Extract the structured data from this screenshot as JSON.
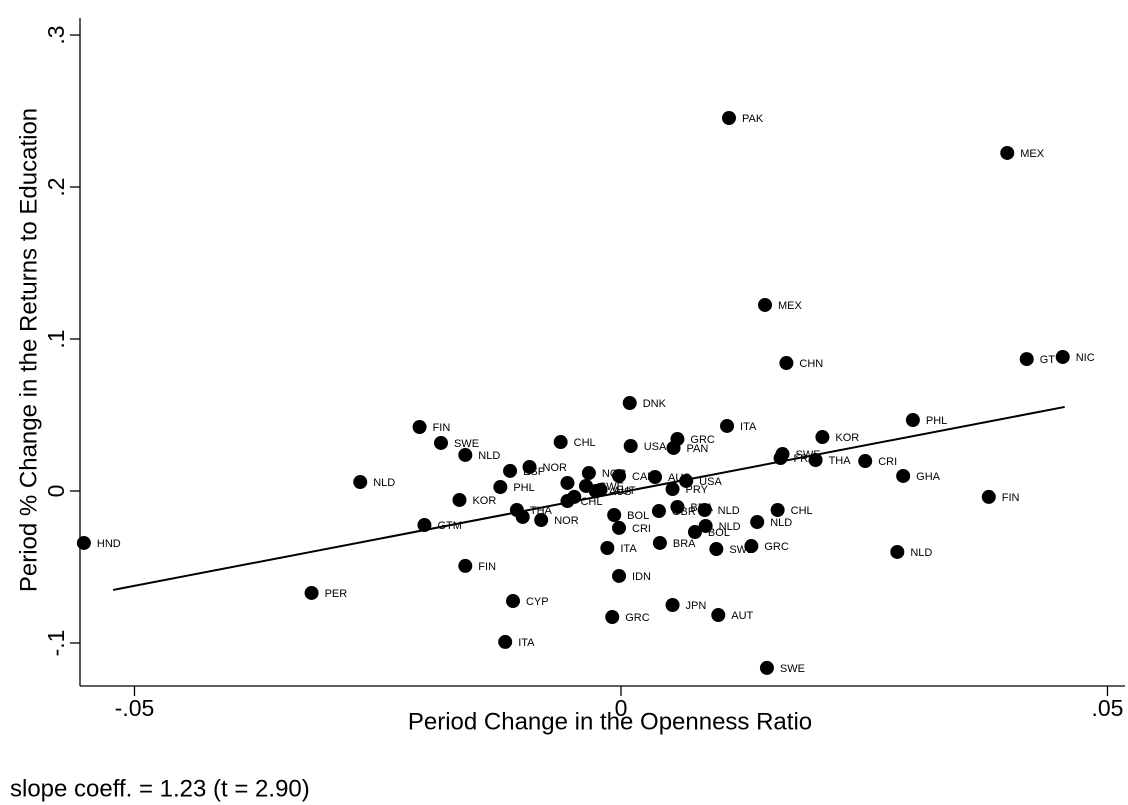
{
  "chart_data": {
    "type": "scatter",
    "xlabel": "Period Change in the Openness Ratio",
    "ylabel": "Period % Change in the Returns to Education",
    "annotation": "slope coeff. = 1.23 (t = 2.90)",
    "xlim": [
      -0.0556,
      0.0518
    ],
    "ylim": [
      -0.1283,
      0.3112
    ],
    "xticks": [
      {
        "value": -0.05,
        "label": "-.05"
      },
      0,
      {
        "value": 0.05,
        "label": ".05"
      }
    ],
    "yticks": [
      {
        "value": -0.1,
        "label": "-.1"
      },
      0,
      {
        "value": 0.1,
        "label": ".1"
      },
      {
        "value": 0.2,
        "label": ".2"
      },
      {
        "value": 0.3,
        "label": ".3"
      }
    ],
    "fit": {
      "x": [
        -0.0522,
        0.0456
      ],
      "y": [
        -0.0651,
        0.0553
      ]
    },
    "series": [
      {
        "color": "#000000",
        "labels": [
          "PAK",
          "MEX",
          "MEX",
          "CHN",
          "GT",
          "NIC",
          "DNK",
          "ITA",
          "PHL",
          "KOR",
          "FIN",
          "SWE",
          "NLD",
          "CHL",
          "USA",
          "GRC",
          "PAN",
          "SWE",
          "FRA",
          "THA",
          "CRI",
          "GHA",
          "FIN",
          "NLD",
          "NOR",
          "ESP",
          "PHL",
          "KOR",
          "GTM",
          "THA",
          null,
          "NOR",
          "NOR",
          "CAN",
          "AUS",
          "USA",
          "PRY",
          null,
          "SWE",
          "AUS",
          "AUT",
          null,
          "CHL",
          "BOL",
          "CRI",
          "GBR",
          "BRA",
          "NLD",
          "NLD",
          "BOL",
          "CHL",
          "NLD",
          "ITA",
          "BRA",
          "SWE",
          "GRC",
          "NLD",
          "FIN",
          "IDN",
          "PER",
          "CYP",
          "JPN",
          "GRC",
          "AUT",
          "ITA",
          "SWE",
          "HND"
        ],
        "x": [
          0.0111,
          0.0397,
          0.0148,
          0.017,
          0.0417,
          0.0454,
          0.0009,
          0.0109,
          0.03,
          0.0207,
          -0.0207,
          -0.0185,
          -0.016,
          -0.0062,
          0.001,
          0.0058,
          0.0054,
          0.0166,
          0.0164,
          0.02,
          0.0251,
          0.029,
          0.0378,
          -0.0268,
          -0.0094,
          -0.0114,
          -0.0124,
          -0.0166,
          -0.0202,
          -0.0107,
          -0.0101,
          -0.0082,
          -0.0033,
          -0.0002,
          0.0035,
          0.0067,
          0.0053,
          -0.0055,
          -0.0036,
          -0.0026,
          -0.0021,
          -0.0048,
          -0.0055,
          -0.0007,
          -0.0002,
          0.0039,
          0.0058,
          0.0086,
          0.0087,
          0.0076,
          0.0161,
          0.014,
          -0.0014,
          0.004,
          0.0098,
          0.0134,
          0.0284,
          -0.016,
          -0.0002,
          -0.0318,
          -0.0111,
          0.0053,
          -0.0009,
          0.01,
          -0.0119,
          0.015,
          -0.0552
        ],
        "values": [
          0.2454,
          0.2224,
          0.1224,
          0.0842,
          0.0868,
          0.0882,
          0.0579,
          0.0428,
          0.0467,
          0.0355,
          0.0421,
          0.0316,
          0.0237,
          0.0322,
          0.0296,
          0.0342,
          0.0283,
          0.0243,
          0.0217,
          0.0204,
          0.0197,
          0.0099,
          -0.0039,
          0.0059,
          0.0158,
          0.0132,
          0.0026,
          -0.0059,
          -0.0224,
          -0.0125,
          -0.0171,
          -0.0191,
          0.0118,
          0.0099,
          0.0092,
          0.0066,
          0.0013,
          0.0053,
          0.0033,
          -0.0,
          0.0007,
          -0.0039,
          -0.0066,
          -0.0158,
          -0.0243,
          -0.0132,
          -0.0105,
          -0.0125,
          -0.023,
          -0.027,
          -0.0125,
          -0.0204,
          -0.0375,
          -0.0342,
          -0.0382,
          -0.0362,
          -0.0401,
          -0.0493,
          -0.0559,
          -0.0671,
          -0.0724,
          -0.075,
          -0.0829,
          -0.0816,
          -0.0993,
          -0.1164,
          -0.0342
        ]
      }
    ]
  }
}
